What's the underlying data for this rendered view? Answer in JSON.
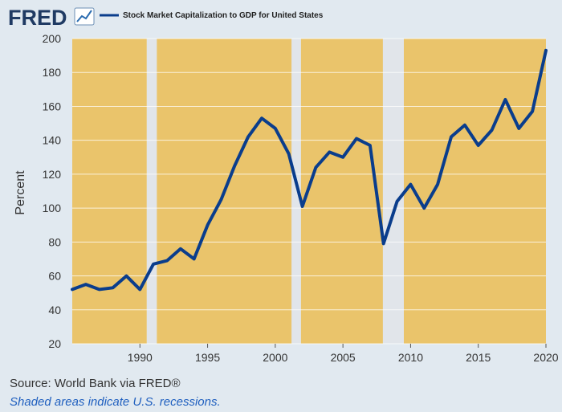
{
  "header": {
    "logo_text": "FRED",
    "legend_label": "Stock Market Capitalization to GDP for United States"
  },
  "colors": {
    "background": "#e1e9f0",
    "plot_fill": "#eac46b",
    "recession_fill": "#e1e5ea",
    "line": "#0a3d8c",
    "grid": "#ffffff",
    "brand": "#1f3a63"
  },
  "chart_data": {
    "type": "line",
    "title": "Stock Market Capitalization to GDP for United States",
    "xlabel": "",
    "ylabel": "Percent",
    "xlim": [
      1985,
      2020
    ],
    "ylim": [
      20,
      200
    ],
    "yticks": [
      20,
      40,
      60,
      80,
      100,
      120,
      140,
      160,
      180,
      200
    ],
    "xticks": [
      1990,
      1995,
      2000,
      2005,
      2010,
      2015,
      2020
    ],
    "recessions": [
      [
        1990.5,
        1991.25
      ],
      [
        2001.2,
        2001.9
      ],
      [
        2007.95,
        2009.5
      ]
    ],
    "series": [
      {
        "name": "Stock Market Capitalization to GDP for United States",
        "x": [
          1985,
          1986,
          1987,
          1988,
          1989,
          1990,
          1991,
          1992,
          1993,
          1994,
          1995,
          1996,
          1997,
          1998,
          1999,
          2000,
          2001,
          2002,
          2003,
          2004,
          2005,
          2006,
          2007,
          2008,
          2009,
          2010,
          2011,
          2012,
          2013,
          2014,
          2015,
          2016,
          2017,
          2018,
          2019,
          2020
        ],
        "values": [
          52,
          55,
          52,
          53,
          60,
          52,
          67,
          69,
          76,
          70,
          90,
          105,
          125,
          142,
          153,
          147,
          132,
          101,
          124,
          133,
          130,
          141,
          137,
          79,
          104,
          114,
          100,
          114,
          142,
          149,
          137,
          146,
          164,
          147,
          157,
          193
        ]
      }
    ]
  },
  "footer": {
    "source": "Source: World Bank via FRED®",
    "note": "Shaded areas indicate U.S. recessions."
  }
}
